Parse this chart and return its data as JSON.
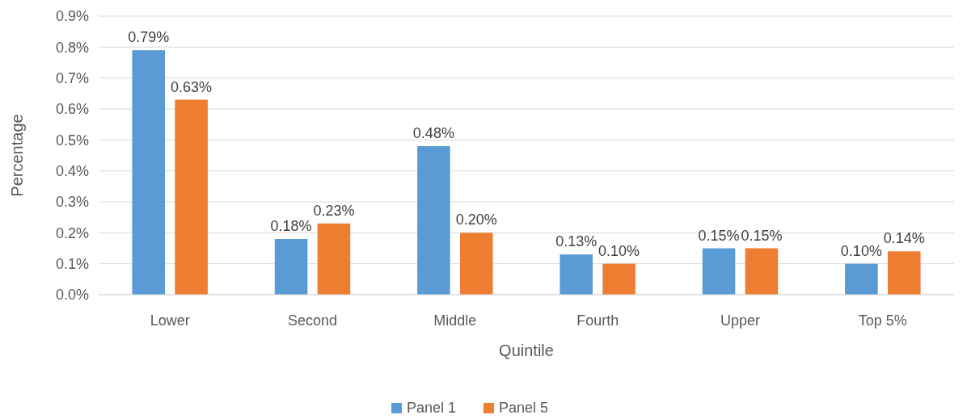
{
  "chart_data": {
    "type": "bar",
    "xlabel": "Quintile",
    "ylabel": "Percentage",
    "categories": [
      "Lower",
      "Second",
      "Middle",
      "Fourth",
      "Upper",
      "Top 5%"
    ],
    "series": [
      {
        "name": "Panel 1",
        "color": "#5b9bd5",
        "values": [
          0.79,
          0.18,
          0.48,
          0.13,
          0.15,
          0.1
        ],
        "value_labels": [
          "0.79%",
          "0.18%",
          "0.48%",
          "0.13%",
          "0.15%",
          "0.10%"
        ]
      },
      {
        "name": "Panel 5",
        "color": "#ed7d31",
        "values": [
          0.63,
          0.23,
          0.2,
          0.1,
          0.15,
          0.14
        ],
        "value_labels": [
          "0.63%",
          "0.23%",
          "0.20%",
          "0.10%",
          "0.15%",
          "0.14%"
        ]
      }
    ],
    "ylim": [
      0,
      0.9
    ],
    "yticks": [
      {
        "value": 0,
        "label": "0.0%"
      },
      {
        "value": 0.1,
        "label": "0.1%"
      },
      {
        "value": 0.2,
        "label": "0.2%"
      },
      {
        "value": 0.3,
        "label": "0.3%"
      },
      {
        "value": 0.4,
        "label": "0.4%"
      },
      {
        "value": 0.5,
        "label": "0.5%"
      },
      {
        "value": 0.6,
        "label": "0.6%"
      },
      {
        "value": 0.7,
        "label": "0.7%"
      },
      {
        "value": 0.8,
        "label": "0.8%"
      },
      {
        "value": 0.9,
        "label": "0.9%"
      }
    ],
    "grid": "y",
    "legend": "bottom"
  }
}
